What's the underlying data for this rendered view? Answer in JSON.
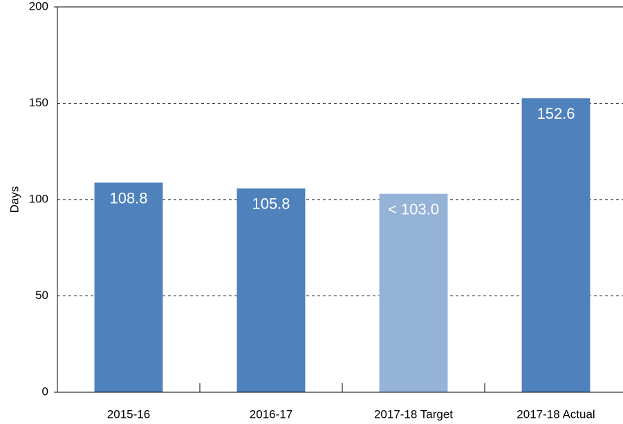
{
  "chart_data": {
    "type": "bar",
    "y_label": "Days",
    "categories": [
      "2015-16",
      "2016-17",
      "2017-18 Target",
      "2017-18 Actual"
    ],
    "values": [
      108.8,
      105.8,
      103.0,
      152.6
    ],
    "value_labels": [
      "108.8",
      "105.8",
      "< 103.0",
      "152.6"
    ],
    "colors": [
      "#4f81bd",
      "#4f81bd",
      "#95b3d7",
      "#4f81bd"
    ],
    "ylim": [
      0,
      200
    ],
    "yticks": [
      0,
      50,
      100,
      150,
      200
    ],
    "grid": true
  }
}
